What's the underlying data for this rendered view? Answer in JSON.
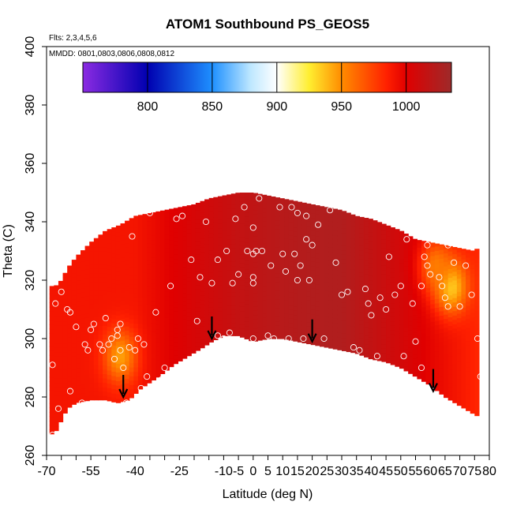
{
  "chart_data": {
    "type": "heatmap",
    "title": "ATOM1 Southbound PS_GEOS5",
    "subtitle_flights": "Flts: 2,3,4,5,6",
    "subtitle_dates": "MMDD: 0801,0803,0806,0808,0812",
    "xlabel": "Latitude (deg N)",
    "ylabel": "Theta (C)",
    "xlim": [
      -70,
      80
    ],
    "ylim": [
      260,
      400
    ],
    "x_ticks": [
      -70,
      -65,
      -60,
      -55,
      -50,
      -45,
      -40,
      -35,
      -30,
      -25,
      -20,
      -15,
      -10,
      -5,
      0,
      5,
      10,
      15,
      20,
      25,
      30,
      35,
      40,
      45,
      50,
      55,
      60,
      65,
      70,
      75,
      80
    ],
    "x_tick_labels": [
      "-70",
      "",
      "",
      "-55",
      "",
      "",
      "-40",
      "",
      "",
      "-25",
      "",
      "",
      "-10",
      "-5",
      "0",
      "5",
      "10",
      "15",
      "20",
      "25",
      "30",
      "35",
      "40",
      "45",
      "50",
      "55",
      "60",
      "65",
      "70",
      "75",
      "80"
    ],
    "y_ticks": [
      260,
      280,
      300,
      320,
      340,
      360,
      380,
      400
    ],
    "y_tick_labels": [
      "260",
      "280",
      "300",
      "320",
      "340",
      "360",
      "380",
      "400"
    ],
    "colorbar": {
      "range": [
        750,
        1035
      ],
      "ticks": [
        800,
        850,
        900,
        950,
        1000
      ],
      "tick_labels": [
        "800",
        "850",
        "900",
        "950",
        "1000"
      ],
      "color_stops": [
        {
          "value": 750,
          "color": "#8b2be2"
        },
        {
          "value": 800,
          "color": "#0000b0"
        },
        {
          "value": 850,
          "color": "#1e90ff"
        },
        {
          "value": 880,
          "color": "#bfe8ff"
        },
        {
          "value": 900,
          "color": "#ffffff"
        },
        {
          "value": 925,
          "color": "#ffee30"
        },
        {
          "value": 950,
          "color": "#ff8c00"
        },
        {
          "value": 985,
          "color": "#ff2000"
        },
        {
          "value": 1000,
          "color": "#e00000"
        },
        {
          "value": 1035,
          "color": "#9e2a2a"
        }
      ]
    },
    "field": {
      "top_boundary": [
        [
          -69,
          318
        ],
        [
          -67,
          318
        ],
        [
          -65,
          320
        ],
        [
          -63,
          324
        ],
        [
          -60,
          328
        ],
        [
          -55,
          333
        ],
        [
          -50,
          337
        ],
        [
          -45,
          339
        ],
        [
          -40,
          342
        ],
        [
          -35,
          343
        ],
        [
          -30,
          344
        ],
        [
          -25,
          345
        ],
        [
          -20,
          346
        ],
        [
          -15,
          348
        ],
        [
          -10,
          349
        ],
        [
          -5,
          350
        ],
        [
          0,
          350
        ],
        [
          5,
          349
        ],
        [
          10,
          348
        ],
        [
          15,
          347
        ],
        [
          20,
          346
        ],
        [
          25,
          345
        ],
        [
          30,
          344
        ],
        [
          35,
          342
        ],
        [
          40,
          341
        ],
        [
          45,
          339
        ],
        [
          50,
          337
        ],
        [
          55,
          334
        ],
        [
          60,
          333
        ],
        [
          65,
          332
        ],
        [
          70,
          331
        ],
        [
          75,
          330
        ],
        [
          76,
          331
        ]
      ],
      "bottom_boundary": [
        [
          -69,
          267
        ],
        [
          -67,
          268
        ],
        [
          -63,
          276
        ],
        [
          -60,
          278
        ],
        [
          -55,
          279
        ],
        [
          -50,
          279
        ],
        [
          -46,
          278
        ],
        [
          -42,
          279
        ],
        [
          -38,
          283
        ],
        [
          -32,
          287
        ],
        [
          -27,
          291
        ],
        [
          -22,
          294
        ],
        [
          -17,
          297
        ],
        [
          -14,
          299
        ],
        [
          -10,
          301
        ],
        [
          -5,
          301
        ],
        [
          0,
          299
        ],
        [
          5,
          300
        ],
        [
          10,
          300
        ],
        [
          15,
          299
        ],
        [
          20,
          298
        ],
        [
          25,
          297
        ],
        [
          30,
          296
        ],
        [
          35,
          295
        ],
        [
          40,
          293
        ],
        [
          45,
          292
        ],
        [
          50,
          290
        ],
        [
          55,
          287
        ],
        [
          60,
          284
        ],
        [
          65,
          280
        ],
        [
          70,
          277
        ],
        [
          75,
          274
        ],
        [
          79,
          272
        ]
      ],
      "base_value_low_lat": 990,
      "base_value_mid_lat": 1025,
      "hotspots": [
        {
          "lat": -45,
          "theta": 294,
          "value": 945
        },
        {
          "lat": 67,
          "theta": 318,
          "value": 930
        },
        {
          "lat": 62,
          "theta": 325,
          "value": 955
        }
      ]
    },
    "arrows": [
      [
        -44,
        280
      ],
      [
        -14,
        300
      ],
      [
        20,
        299
      ],
      [
        61,
        282
      ]
    ],
    "sample_points": [
      [
        -68,
        291
      ],
      [
        -67,
        312
      ],
      [
        -65,
        316
      ],
      [
        -63,
        310
      ],
      [
        -62,
        309
      ],
      [
        -60,
        304
      ],
      [
        -57,
        298
      ],
      [
        -56,
        296
      ],
      [
        -55,
        303
      ],
      [
        -54,
        305
      ],
      [
        -52,
        298
      ],
      [
        -51,
        296
      ],
      [
        -50,
        307
      ],
      [
        -49,
        298
      ],
      [
        -48,
        300
      ],
      [
        -47,
        293
      ],
      [
        -46,
        301
      ],
      [
        -46,
        303
      ],
      [
        -45,
        305
      ],
      [
        -45,
        296
      ],
      [
        -44,
        290
      ],
      [
        -43,
        278
      ],
      [
        -42,
        297
      ],
      [
        -41,
        335
      ],
      [
        -39,
        300
      ],
      [
        -38,
        283
      ],
      [
        -37,
        298
      ],
      [
        -35,
        343
      ],
      [
        -33,
        309
      ],
      [
        -31,
        286
      ],
      [
        -28,
        318
      ],
      [
        -26,
        341
      ],
      [
        -24,
        342
      ],
      [
        -21,
        327
      ],
      [
        -20,
        293
      ],
      [
        -19,
        306
      ],
      [
        -18,
        321
      ],
      [
        -16,
        340
      ],
      [
        -14,
        319
      ],
      [
        -12,
        301
      ],
      [
        -12,
        327
      ],
      [
        -10,
        300
      ],
      [
        -9,
        330
      ],
      [
        -8,
        302
      ],
      [
        -7,
        319
      ],
      [
        -6,
        341
      ],
      [
        -5,
        322
      ],
      [
        -3,
        345
      ],
      [
        -2,
        330
      ],
      [
        0,
        300
      ],
      [
        0,
        329
      ],
      [
        0,
        338
      ],
      [
        0,
        321
      ],
      [
        0,
        319
      ],
      [
        1,
        330
      ],
      [
        2,
        348
      ],
      [
        3,
        330
      ],
      [
        5,
        301
      ],
      [
        6,
        325
      ],
      [
        7,
        300
      ],
      [
        9,
        345
      ],
      [
        10,
        329
      ],
      [
        11,
        323
      ],
      [
        12,
        300
      ],
      [
        13,
        345
      ],
      [
        14,
        329
      ],
      [
        15,
        343
      ],
      [
        15,
        320
      ],
      [
        16,
        325
      ],
      [
        17,
        300
      ],
      [
        18,
        342
      ],
      [
        18,
        334
      ],
      [
        19,
        320
      ],
      [
        20,
        332
      ],
      [
        22,
        339
      ],
      [
        24,
        300
      ],
      [
        26,
        344
      ],
      [
        28,
        326
      ],
      [
        30,
        315
      ],
      [
        32,
        316
      ],
      [
        34,
        297
      ],
      [
        36,
        296
      ],
      [
        38,
        317
      ],
      [
        39,
        312
      ],
      [
        40,
        308
      ],
      [
        42,
        294
      ],
      [
        43,
        314
      ],
      [
        45,
        310
      ],
      [
        46,
        328
      ],
      [
        48,
        315
      ],
      [
        50,
        318
      ],
      [
        51,
        294
      ],
      [
        52,
        334
      ],
      [
        54,
        312
      ],
      [
        55,
        299
      ],
      [
        57,
        318
      ],
      [
        57,
        290
      ],
      [
        58,
        328
      ],
      [
        59,
        332
      ],
      [
        59,
        325
      ],
      [
        60,
        322
      ],
      [
        63,
        321
      ],
      [
        64,
        318
      ],
      [
        65,
        314
      ],
      [
        66,
        311
      ],
      [
        66,
        332
      ],
      [
        68,
        326
      ],
      [
        70,
        311
      ],
      [
        72,
        325
      ],
      [
        74,
        315
      ],
      [
        76,
        300
      ],
      [
        77,
        287
      ],
      [
        78,
        270
      ],
      [
        -40,
        296
      ],
      [
        -36,
        287
      ],
      [
        -30,
        290
      ],
      [
        -58,
        278
      ],
      [
        -62,
        282
      ],
      [
        -66,
        276
      ],
      [
        -68,
        267
      ]
    ]
  }
}
